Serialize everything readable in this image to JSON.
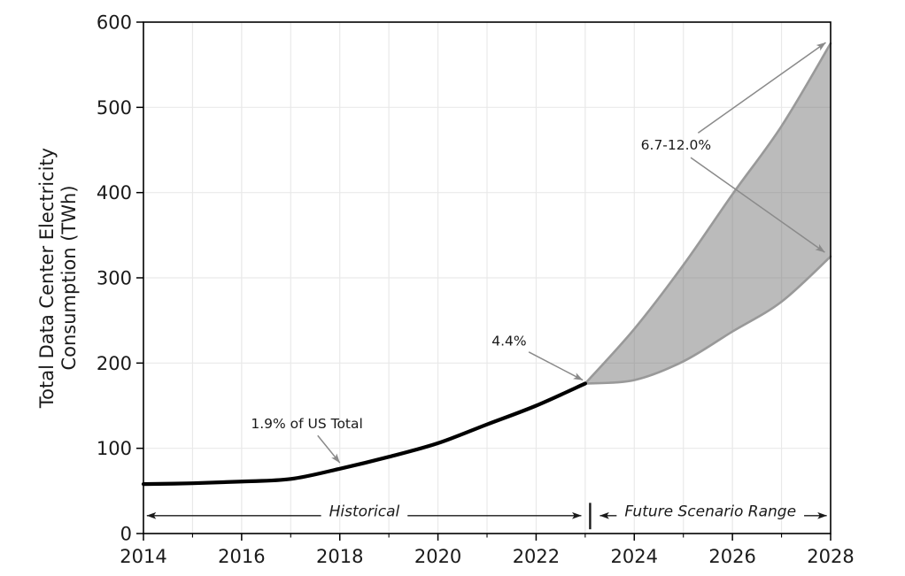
{
  "figure": {
    "background": "#ffffff"
  },
  "chart_data": {
    "type": "line",
    "title": "",
    "xlabel": "",
    "ylabel_lines": [
      "Total Data Center Electricity",
      "Consumption (TWh)"
    ],
    "xlim": [
      2014,
      2028
    ],
    "ylim": [
      0,
      600
    ],
    "x_major_ticks": [
      2014,
      2016,
      2018,
      2020,
      2022,
      2024,
      2026,
      2028
    ],
    "x_minor_ticks": [
      2015,
      2017,
      2019,
      2021,
      2023,
      2025,
      2027
    ],
    "y_ticks": [
      0,
      100,
      200,
      300,
      400,
      500,
      600
    ],
    "grid": {
      "show": true,
      "color": "#e9e9e9",
      "x_lines_years": [
        2015,
        2016,
        2017,
        2018,
        2019,
        2020,
        2021,
        2022,
        2023,
        2024,
        2025,
        2026,
        2027
      ],
      "y_lines_values": [
        100,
        200,
        300,
        400,
        500
      ]
    },
    "series": [
      {
        "name": "Historical",
        "type": "line",
        "color": "#000000",
        "line_width": 4.2,
        "x": [
          2014,
          2015,
          2016,
          2017,
          2018,
          2019,
          2020,
          2021,
          2022,
          2023
        ],
        "values": [
          58,
          59,
          61,
          64,
          76,
          90,
          106,
          128,
          150,
          176
        ]
      },
      {
        "name": "Future Scenario Low",
        "type": "line",
        "color": "#999999",
        "line_width": 2.6,
        "x": [
          2023,
          2024,
          2025,
          2026,
          2027,
          2028
        ],
        "values": [
          176,
          180,
          202,
          237,
          272,
          325
        ]
      },
      {
        "name": "Future Scenario High",
        "type": "line",
        "color": "#999999",
        "line_width": 2.6,
        "x": [
          2023,
          2024,
          2025,
          2026,
          2027,
          2028
        ],
        "values": [
          176,
          240,
          315,
          398,
          478,
          575
        ]
      }
    ],
    "band": {
      "between": [
        "Future Scenario High",
        "Future Scenario Low"
      ],
      "fill": "#707070",
      "fill_opacity": 0.48
    },
    "annotations": [
      {
        "id": "pct-2018",
        "text": "1.9% of US Total",
        "text_x": 2017.33,
        "text_y": 129,
        "color": "#1a1a1a",
        "arrow_color": "#8a8a8a",
        "arrows": [
          {
            "from": [
              2017.55,
              115
            ],
            "to": [
              2018.0,
              83
            ]
          }
        ]
      },
      {
        "id": "pct-2023",
        "text": "4.4%",
        "text_x": 2021.45,
        "text_y": 226,
        "color": "#1a1a1a",
        "arrow_color": "#8a8a8a",
        "arrows": [
          {
            "from": [
              2021.85,
              213
            ],
            "to": [
              2022.95,
              180
            ]
          }
        ]
      },
      {
        "id": "pct-2028",
        "text": "6.7-12.0%",
        "text_x": 2024.85,
        "text_y": 456,
        "color": "#1a1a1a",
        "arrow_color": "#8a8a8a",
        "arrows": [
          {
            "from": [
              2025.3,
              470
            ],
            "to": [
              2027.9,
              576
            ]
          },
          {
            "from": [
              2025.15,
              441
            ],
            "to": [
              2027.88,
              330
            ]
          }
        ]
      }
    ],
    "range_markers": [
      {
        "id": "historical",
        "label": "Historical",
        "x_start": 2014.07,
        "x_end": 2022.92,
        "y": 21,
        "label_x": 2018.5,
        "color": "#1a1a1a"
      },
      {
        "id": "future",
        "label": "Future Scenario Range",
        "x_start": 2023.3,
        "x_end": 2027.92,
        "y": 21,
        "label_x": 2025.55,
        "color": "#1a1a1a"
      }
    ],
    "divider": {
      "x": 2023.1,
      "y_bottom": 5,
      "y_top": 36,
      "color": "#1a1a1a"
    },
    "axes_style": {
      "spine_color": "#000000",
      "tick_label_color": "#1a1a1a",
      "annotation_arrow_color": "#8a8a8a"
    }
  }
}
